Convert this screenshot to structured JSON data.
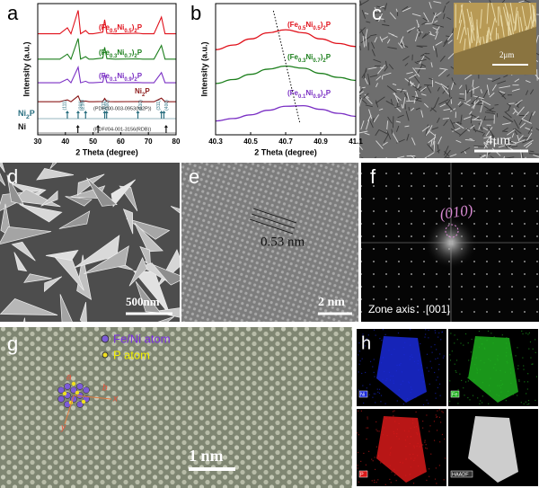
{
  "chart_data": [
    {
      "type": "line",
      "label": "a",
      "xlabel": "2 Theta (degree)",
      "ylabel": "Intensity (a.u.)",
      "xlim": [
        30,
        80
      ],
      "xticks": [
        30,
        40,
        50,
        60,
        70,
        80
      ],
      "ylim": [
        0,
        100
      ],
      "x": [
        30,
        38,
        40.7,
        42,
        44.6,
        45.5,
        47.3,
        48.5,
        50,
        53.5,
        54.2,
        55,
        58,
        66.3,
        68,
        72,
        74.7,
        76,
        80
      ],
      "series": [
        {
          "name": "(Fe0.5Ni0.5)2P",
          "color": "#e0101a",
          "values": [
            8,
            8,
            30,
            8,
            95,
            8,
            20,
            8,
            8,
            14,
            60,
            10,
            8,
            10,
            8,
            8,
            70,
            8,
            8
          ]
        },
        {
          "name": "(Fe0.3Ni0.7)2P",
          "color": "#1c7f1c",
          "values": [
            8,
            8,
            28,
            8,
            90,
            8,
            18,
            8,
            8,
            12,
            55,
            10,
            8,
            9,
            8,
            8,
            62,
            8,
            8
          ]
        },
        {
          "name": "(Fe0.1Ni0.9)2P",
          "color": "#7a2fc4",
          "values": [
            8,
            8,
            25,
            8,
            80,
            8,
            15,
            8,
            8,
            11,
            48,
            9,
            8,
            9,
            8,
            8,
            55,
            8,
            8
          ]
        },
        {
          "name": "Ni2P",
          "color": "#8b1a1a",
          "values": [
            5,
            5,
            18,
            5,
            45,
            5,
            10,
            5,
            5,
            7,
            28,
            6,
            5,
            6,
            5,
            5,
            30,
            5,
            5
          ]
        }
      ],
      "references": [
        {
          "name": "Ni2P",
          "source": "(PDF#00-003-0953(Ni2P))",
          "color": "#2a6f80",
          "peaks": [
            40.7,
            44.6,
            47.3,
            54.2,
            54.9,
            66.2,
            74.7,
            75.6
          ],
          "hkl": [
            "(111)",
            "(201)",
            "(210)",
            "(300)",
            "(211)",
            "(310)",
            "(311)",
            "(400)"
          ]
        },
        {
          "name": "Ni",
          "source": "(PDF#04-001-3156(RDB))",
          "color": "#111111",
          "peaks": [
            44.5,
            51.8,
            76.4
          ]
        }
      ]
    },
    {
      "type": "line",
      "label": "b",
      "xlabel": "2 Theta (degree)",
      "ylabel": "Intensity (a.u.)",
      "xlim": [
        40.3,
        41.1
      ],
      "xticks": [
        40.3,
        40.5,
        40.7,
        40.9,
        41.1
      ],
      "ylim": [
        0,
        100
      ],
      "x": [
        40.3,
        40.4,
        40.5,
        40.6,
        40.7,
        40.8,
        40.9,
        41.0,
        41.1
      ],
      "series": [
        {
          "name": "(Fe0.5Ni0.5)2P",
          "color": "#e0101a",
          "values": [
            20,
            35,
            55,
            75,
            85,
            75,
            55,
            40,
            30
          ]
        },
        {
          "name": "(Fe0.3Ni0.7)2P",
          "color": "#1c7f1c",
          "values": [
            15,
            28,
            45,
            62,
            72,
            65,
            48,
            35,
            25
          ]
        },
        {
          "name": "(Fe0.1Ni0.9)2P",
          "color": "#7a2fc4",
          "values": [
            10,
            18,
            30,
            45,
            58,
            60,
            48,
            35,
            25
          ]
        }
      ],
      "trend_x": [
        40.63,
        40.78
      ]
    }
  ],
  "panels": {
    "c": {
      "label": "c",
      "scale": "4μm",
      "inset_scale": "2μm"
    },
    "d": {
      "label": "d",
      "scale": "500nm"
    },
    "e": {
      "label": "e",
      "spacing": "0.53 nm",
      "scale": "2 nm"
    },
    "f": {
      "label": "f",
      "spot": "(010)",
      "zone": "Zone axis：[001]"
    },
    "g": {
      "label": "g",
      "legend": [
        "Fe/Ni atom",
        "P atom"
      ],
      "axes": [
        "a",
        "b",
        "x",
        "y"
      ],
      "scale": "1 nm"
    },
    "h": {
      "label": "h",
      "maps": [
        "Ni",
        "Fe",
        "P",
        "HAADF"
      ]
    }
  }
}
